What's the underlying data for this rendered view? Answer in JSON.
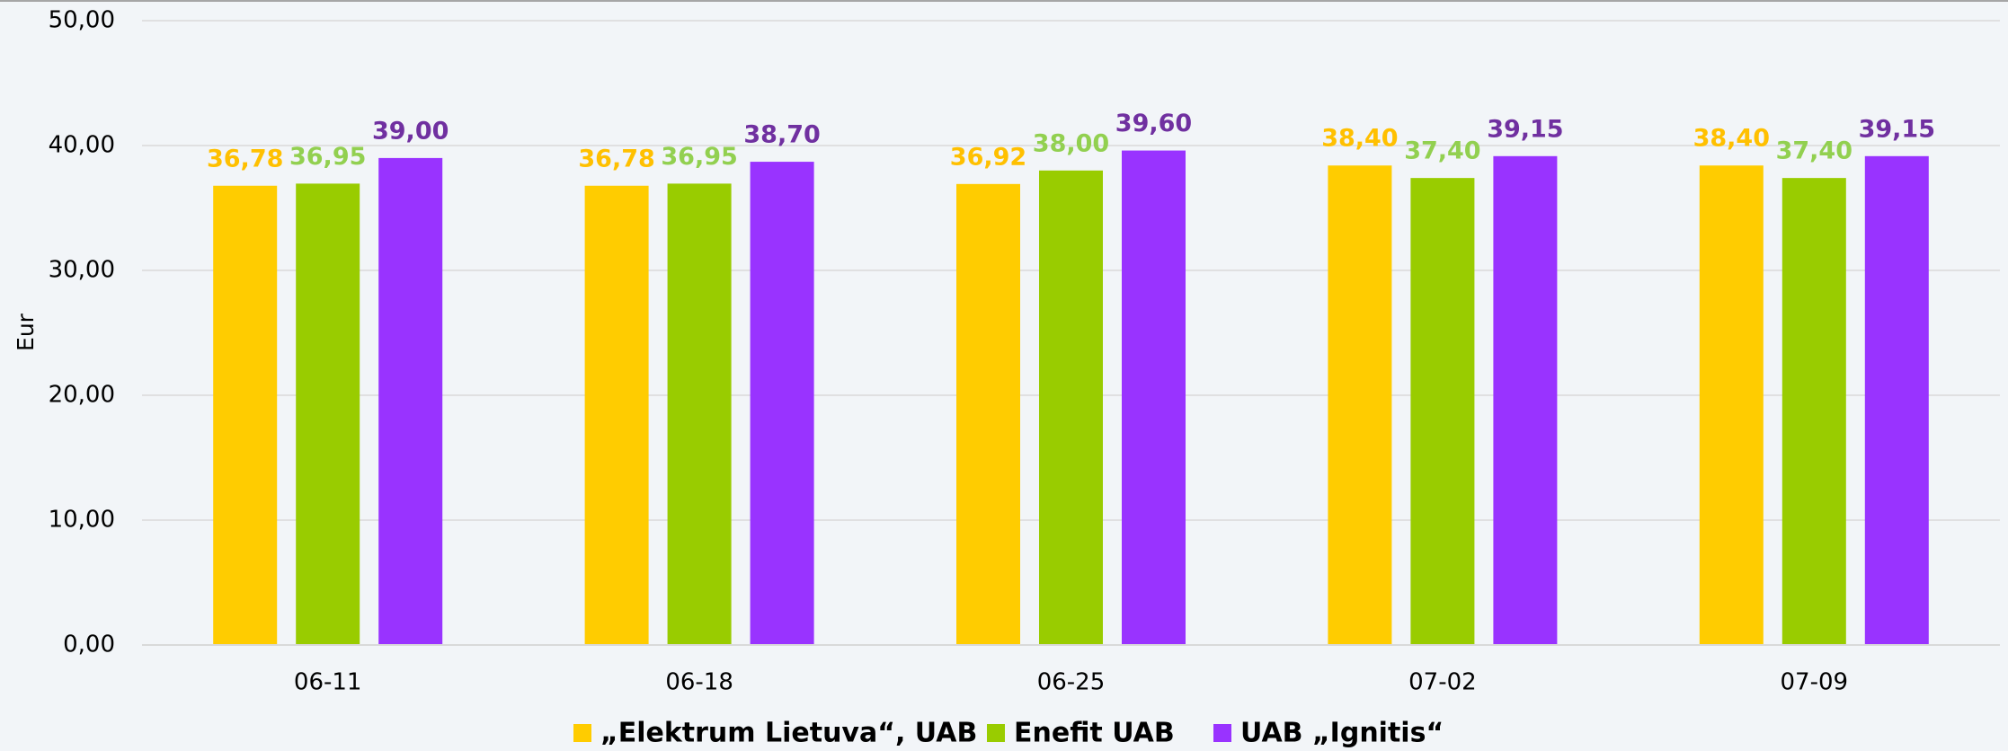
{
  "chart_data": {
    "type": "bar",
    "y_label": "Eur",
    "categories": [
      "06-11",
      "06-18",
      "06-25",
      "07-02",
      "07-09"
    ],
    "series": [
      {
        "name": "„Elektrum Lietuva“, UAB",
        "color": "#ffcc00",
        "label_color": "#ffc000",
        "values": [
          36.78,
          36.78,
          36.92,
          38.4,
          38.4
        ],
        "value_labels": [
          "36,78",
          "36,78",
          "36,92",
          "38,40",
          "38,40"
        ]
      },
      {
        "name": "Enefit UAB",
        "color": "#99cc00",
        "label_color": "#92d050",
        "values": [
          36.95,
          36.95,
          38.0,
          37.4,
          37.4
        ],
        "value_labels": [
          "36,95",
          "36,95",
          "38,00",
          "37,40",
          "37,40"
        ]
      },
      {
        "name": "UAB „Ignitis“",
        "color": "#9933ff",
        "label_color": "#7030a0",
        "values": [
          39.0,
          38.7,
          39.6,
          39.15,
          39.15
        ],
        "value_labels": [
          "39,00",
          "38,70",
          "39,60",
          "39,15",
          "39,15"
        ]
      }
    ],
    "ylim": [
      0,
      50
    ],
    "yticks": [
      {
        "value": 0,
        "label": "0,00"
      },
      {
        "value": 10,
        "label": "10,00"
      },
      {
        "value": 20,
        "label": "20,00"
      },
      {
        "value": 30,
        "label": "30,00"
      },
      {
        "value": 40,
        "label": "40,00"
      },
      {
        "value": 50,
        "label": "50,00"
      }
    ],
    "grid": true,
    "legend": "bottom"
  }
}
